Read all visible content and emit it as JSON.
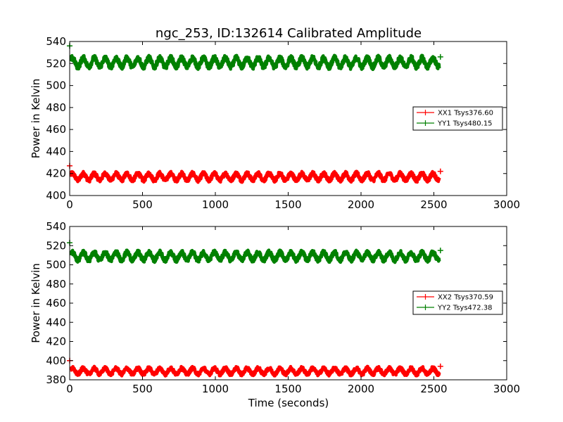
{
  "figure": {
    "title": "ngc_253, ID:132614 Calibrated Amplitude",
    "xlabel": "Time (seconds)"
  },
  "colors": {
    "xx": "#ff0000",
    "yy": "#008000"
  },
  "chart_data": [
    {
      "type": "line",
      "ylabel": "Power in Kelvin",
      "xlim": [
        0,
        3000
      ],
      "ylim": [
        400,
        540
      ],
      "xticks": [
        0,
        500,
        1000,
        1500,
        2000,
        2500,
        3000
      ],
      "yticks": [
        400,
        420,
        440,
        460,
        480,
        500,
        520,
        540
      ],
      "legend_position": "center-right",
      "x_range": [
        0,
        2545
      ],
      "series": [
        {
          "name": "XX1 Tsys376.60",
          "color": "#ff0000",
          "mean": 417,
          "amplitude": 3,
          "period": 75,
          "noise": 2,
          "start_value": 427,
          "end_value": 422
        },
        {
          "name": "YY1 Tsys480.15",
          "color": "#008000",
          "mean": 521,
          "amplitude": 4,
          "period": 75,
          "noise": 2.5,
          "start_value": 536,
          "end_value": 526
        }
      ]
    },
    {
      "type": "line",
      "ylabel": "Power in Kelvin",
      "xlim": [
        0,
        3000
      ],
      "ylim": [
        380,
        540
      ],
      "xticks": [
        0,
        500,
        1000,
        1500,
        2000,
        2500,
        3000
      ],
      "yticks": [
        380,
        400,
        420,
        440,
        460,
        480,
        500,
        520,
        540
      ],
      "legend_position": "center-right",
      "x_range": [
        0,
        2545
      ],
      "series": [
        {
          "name": "XX2 Tsys370.59",
          "color": "#ff0000",
          "mean": 389,
          "amplitude": 3,
          "period": 75,
          "noise": 2,
          "start_value": 400,
          "end_value": 394
        },
        {
          "name": "YY2 Tsys472.38",
          "color": "#008000",
          "mean": 509,
          "amplitude": 4,
          "period": 75,
          "noise": 2.5,
          "start_value": 523,
          "end_value": 515
        }
      ]
    }
  ]
}
